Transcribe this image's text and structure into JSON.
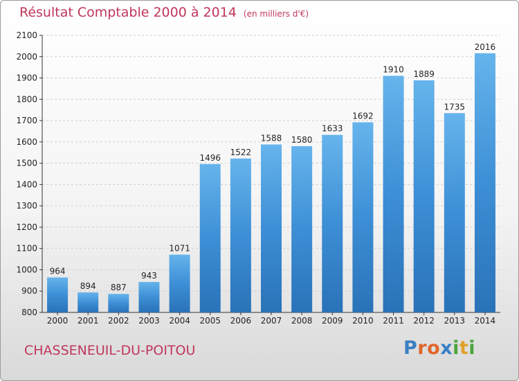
{
  "title": "Résultat Comptable 2000 à 2014",
  "unit": "(en milliers d'€)",
  "town": "CHASSENEUIL-DU-POITOU",
  "logo": {
    "text": "Proxiti",
    "colors": [
      "#3a7fc4",
      "#e0662b",
      "#e0662b",
      "#3a7fc4",
      "#4aa43a",
      "#e0a12b",
      "#4aa43a"
    ]
  },
  "colors": {
    "bar": "#3d8fd6",
    "bar_light": "#66b4ec",
    "bar_dark": "#2a72b8",
    "accent": "#c0365a",
    "axis": "#333333",
    "grid": "#cfcfcf"
  },
  "chart_data": {
    "type": "bar",
    "title": "Résultat Comptable 2000 à 2014",
    "xlabel": "",
    "ylabel": "",
    "ylim": [
      800,
      2100
    ],
    "yticks": [
      800,
      900,
      1000,
      1100,
      1200,
      1300,
      1400,
      1500,
      1600,
      1700,
      1800,
      1900,
      2000,
      2100
    ],
    "grid": "horizontal",
    "categories": [
      "2000",
      "2001",
      "2002",
      "2003",
      "2004",
      "2005",
      "2006",
      "2007",
      "2008",
      "2009",
      "2010",
      "2011",
      "2012",
      "2013",
      "2014"
    ],
    "values": [
      964,
      894,
      887,
      943,
      1071,
      1496,
      1522,
      1588,
      1580,
      1633,
      1692,
      1910,
      1889,
      1735,
      2016
    ]
  }
}
